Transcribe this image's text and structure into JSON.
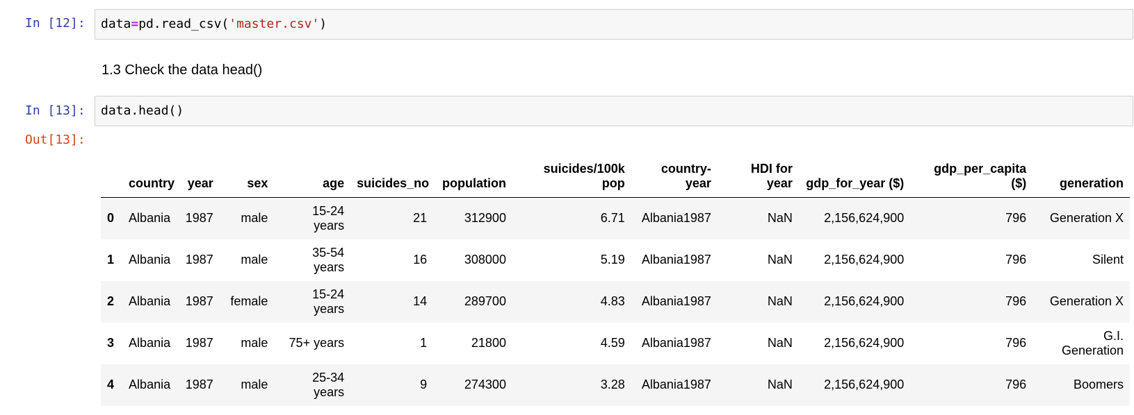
{
  "cells": {
    "cell12": {
      "prompt": "In [12]:",
      "code": {
        "var": "data",
        "op": "=",
        "call": "pd.read_csv(",
        "arg": "'master.csv'",
        "close": ")"
      }
    },
    "markdown": {
      "text": "1.3 Check the data head()"
    },
    "cell13": {
      "prompt": "In [13]:",
      "code": "data.head()",
      "out_prompt": "Out[13]:"
    }
  },
  "dataframe": {
    "columns": [
      "country",
      "year",
      "sex",
      "age",
      "suicides_no",
      "population",
      "suicides/100k pop",
      "country-year",
      "HDI for year",
      "gdp_for_year ($)",
      "gdp_per_capita ($)",
      "generation"
    ],
    "rows": [
      {
        "index": "0",
        "cells": [
          "Albania",
          "1987",
          "male",
          "15-24 years",
          "21",
          "312900",
          "6.71",
          "Albania1987",
          "NaN",
          "2,156,624,900",
          "796",
          "Generation X"
        ]
      },
      {
        "index": "1",
        "cells": [
          "Albania",
          "1987",
          "male",
          "35-54 years",
          "16",
          "308000",
          "5.19",
          "Albania1987",
          "NaN",
          "2,156,624,900",
          "796",
          "Silent"
        ]
      },
      {
        "index": "2",
        "cells": [
          "Albania",
          "1987",
          "female",
          "15-24 years",
          "14",
          "289700",
          "4.83",
          "Albania1987",
          "NaN",
          "2,156,624,900",
          "796",
          "Generation X"
        ]
      },
      {
        "index": "3",
        "cells": [
          "Albania",
          "1987",
          "male",
          "75+ years",
          "1",
          "21800",
          "4.59",
          "Albania1987",
          "NaN",
          "2,156,624,900",
          "796",
          "G.I. Generation"
        ]
      },
      {
        "index": "4",
        "cells": [
          "Albania",
          "1987",
          "male",
          "25-34 years",
          "9",
          "274300",
          "3.28",
          "Albania1987",
          "NaN",
          "2,156,624,900",
          "796",
          "Boomers"
        ]
      }
    ]
  },
  "colors": {
    "in_prompt": "#303f9f",
    "out_prompt": "#d84315",
    "string": "#ba2121",
    "operator": "#aa22ff",
    "code_bg": "#f7f7f7",
    "stripe": "#f5f5f5"
  }
}
